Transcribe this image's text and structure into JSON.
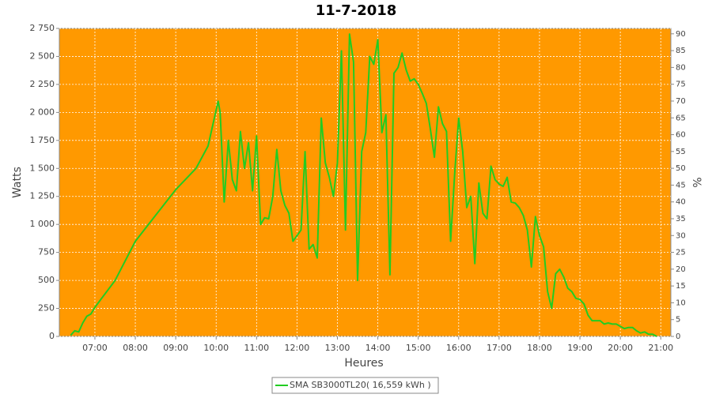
{
  "chart_data": {
    "type": "line",
    "title": "11-7-2018",
    "x_label": "Heures",
    "y_label": "Watts",
    "y2_label": "%",
    "background": "#ff9900",
    "grid": true,
    "x": [
      6.4,
      6.5,
      6.6,
      6.7,
      6.8,
      6.9,
      7.0,
      7.5,
      8.0,
      8.5,
      9.0,
      9.5,
      9.8,
      10.0,
      10.05,
      10.1,
      10.2,
      10.3,
      10.4,
      10.5,
      10.6,
      10.7,
      10.8,
      10.9,
      11.0,
      11.1,
      11.2,
      11.3,
      11.4,
      11.5,
      11.6,
      11.7,
      11.8,
      11.9,
      12.0,
      12.1,
      12.2,
      12.3,
      12.4,
      12.5,
      12.6,
      12.7,
      12.8,
      12.9,
      13.0,
      13.1,
      13.2,
      13.3,
      13.4,
      13.5,
      13.6,
      13.7,
      13.8,
      13.9,
      14.0,
      14.1,
      14.2,
      14.3,
      14.4,
      14.5,
      14.6,
      14.7,
      14.8,
      14.9,
      15.0,
      15.1,
      15.2,
      15.3,
      15.4,
      15.5,
      15.6,
      15.7,
      15.8,
      15.9,
      16.0,
      16.1,
      16.2,
      16.3,
      16.4,
      16.5,
      16.6,
      16.7,
      16.8,
      16.9,
      17.0,
      17.1,
      17.2,
      17.3,
      17.4,
      17.5,
      17.6,
      17.7,
      17.8,
      17.9,
      18.0,
      18.1,
      18.2,
      18.3,
      18.4,
      18.5,
      18.6,
      18.7,
      18.8,
      18.9,
      19.0,
      19.1,
      19.2,
      19.3,
      19.4,
      19.5,
      19.6,
      19.7,
      19.8,
      19.9,
      20.0,
      20.1,
      20.2,
      20.3,
      20.4,
      20.5,
      20.6,
      20.7,
      20.8,
      20.9
    ],
    "series": [
      {
        "name": "SMA SB3000TL20( 16,559 kWh )",
        "color": "#22cc22",
        "values": [
          10,
          50,
          40,
          120,
          180,
          200,
          260,
          500,
          850,
          1080,
          1310,
          1500,
          1700,
          2020,
          2100,
          2000,
          1200,
          1750,
          1400,
          1300,
          1830,
          1500,
          1730,
          1300,
          1790,
          1000,
          1060,
          1050,
          1250,
          1670,
          1300,
          1170,
          1100,
          850,
          900,
          950,
          1650,
          780,
          820,
          700,
          1950,
          1550,
          1420,
          1250,
          1550,
          2550,
          950,
          2700,
          2450,
          500,
          1650,
          1820,
          2500,
          2430,
          2650,
          1820,
          1980,
          550,
          2350,
          2400,
          2530,
          2380,
          2280,
          2300,
          2250,
          2170,
          2080,
          1850,
          1600,
          2050,
          1900,
          1830,
          850,
          1450,
          1950,
          1650,
          1150,
          1250,
          650,
          1370,
          1100,
          1050,
          1520,
          1400,
          1360,
          1340,
          1420,
          1200,
          1190,
          1150,
          1080,
          950,
          620,
          1070,
          900,
          800,
          400,
          250,
          560,
          600,
          530,
          430,
          400,
          340,
          330,
          290,
          190,
          140,
          140,
          140,
          110,
          120,
          110,
          110,
          90,
          70,
          80,
          80,
          50,
          30,
          40,
          20,
          20,
          0
        ]
      }
    ],
    "xlim": [
      6.12,
      21.25
    ],
    "xticks": [
      {
        "value": 7,
        "label": "07:00"
      },
      {
        "value": 8,
        "label": "08:00"
      },
      {
        "value": 9,
        "label": "09:00"
      },
      {
        "value": 10,
        "label": "10:00"
      },
      {
        "value": 11,
        "label": "11:00"
      },
      {
        "value": 12,
        "label": "12:00"
      },
      {
        "value": 13,
        "label": "13:00"
      },
      {
        "value": 14,
        "label": "14:00"
      },
      {
        "value": 15,
        "label": "15:00"
      },
      {
        "value": 16,
        "label": "16:00"
      },
      {
        "value": 17,
        "label": "17:00"
      },
      {
        "value": 18,
        "label": "18:00"
      },
      {
        "value": 19,
        "label": "19:00"
      },
      {
        "value": 20,
        "label": "20:00"
      },
      {
        "value": 21,
        "label": "21:00"
      }
    ],
    "ylim": [
      0,
      2750
    ],
    "yticks": [
      0,
      250,
      500,
      750,
      {
        "value": 1000,
        "label": "1 000"
      },
      {
        "value": 1250,
        "label": "1 250"
      },
      {
        "value": 1500,
        "label": "1 500"
      },
      {
        "value": 1750,
        "label": "1 750"
      },
      {
        "value": 2000,
        "label": "2 000"
      },
      {
        "value": 2250,
        "label": "2 250"
      },
      {
        "value": 2500,
        "label": "2 500"
      },
      {
        "value": 2750,
        "label": "2 750"
      }
    ],
    "y2lim": [
      0,
      91.6
    ],
    "y2ticks": [
      0,
      5,
      10,
      15,
      20,
      25,
      30,
      35,
      40,
      45,
      50,
      55,
      60,
      65,
      70,
      75,
      80,
      85,
      90
    ]
  }
}
